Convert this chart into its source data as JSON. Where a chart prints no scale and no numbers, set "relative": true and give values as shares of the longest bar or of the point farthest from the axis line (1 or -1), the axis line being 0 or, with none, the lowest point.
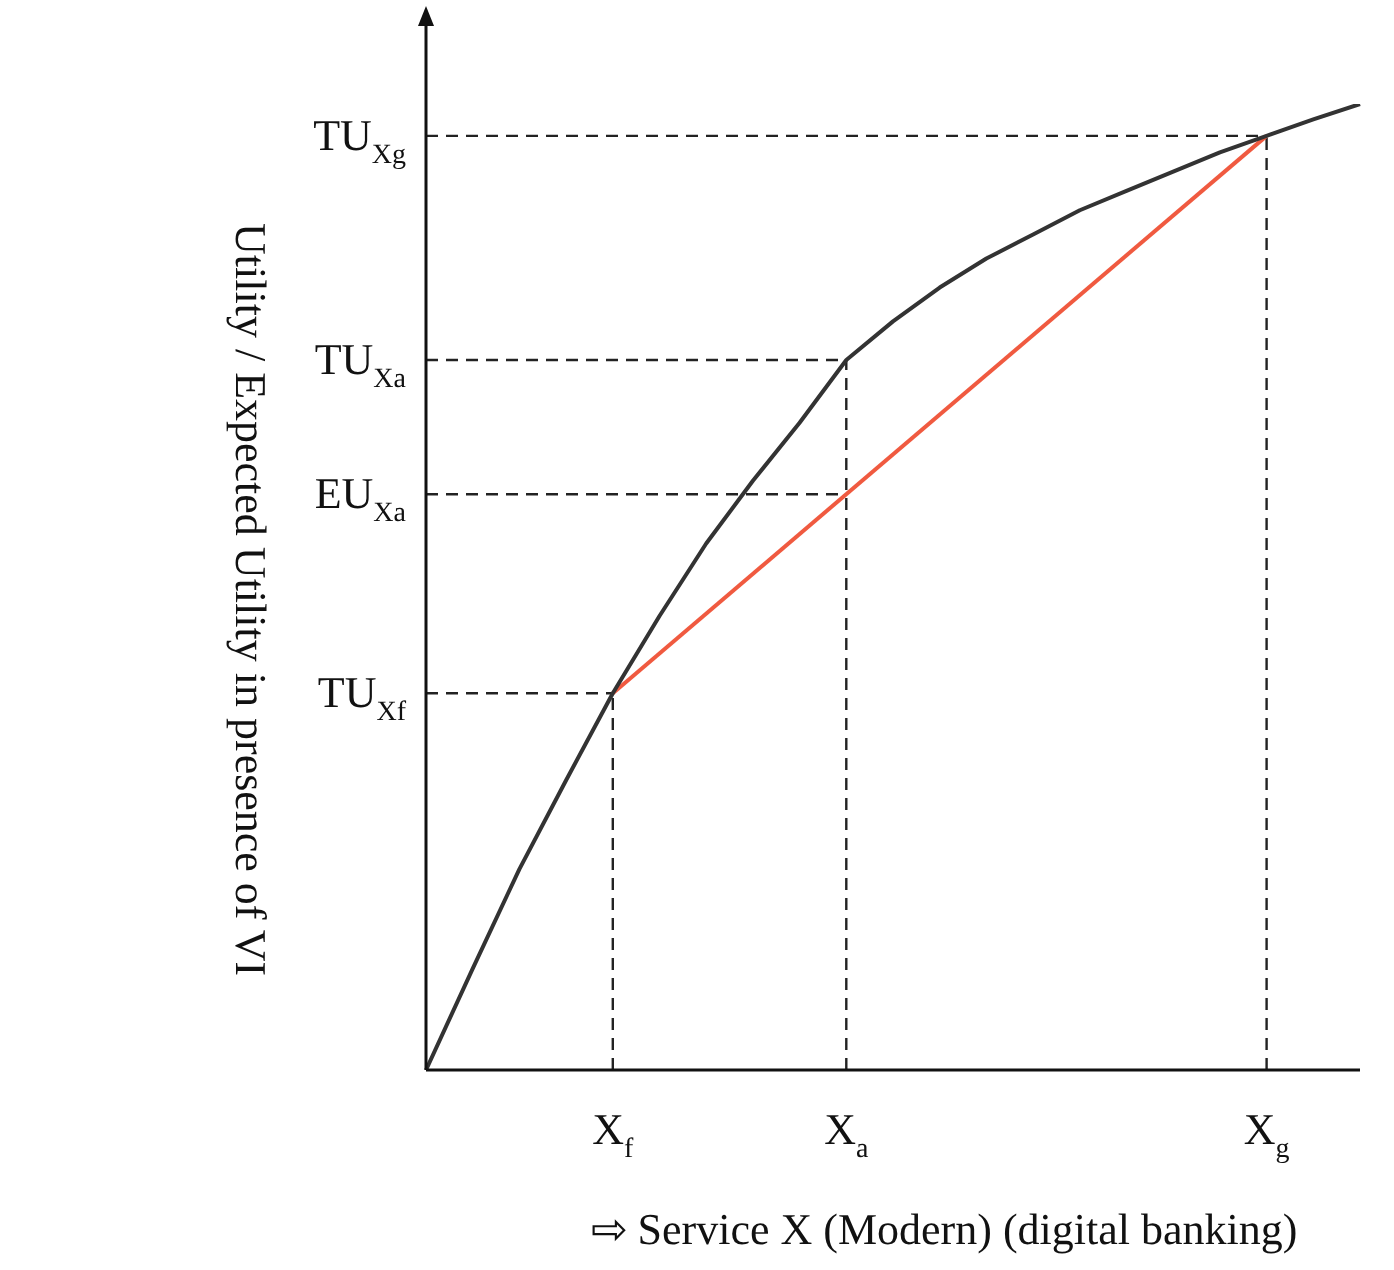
{
  "chart_data": {
    "type": "line",
    "relative": true,
    "categories": [
      null,
      null,
      null,
      null,
      "X$_{f}$",
      null,
      null,
      null,
      null,
      "X$_{a}$",
      null,
      null,
      null,
      null,
      null,
      null,
      null,
      null,
      "X$_{g}$",
      null,
      null
    ],
    "xlabel": "⇨ Service X (Modern) (digital banking)",
    "ylabel": "Utility / Expected Utility in presence of VI",
    "legend": false,
    "grid": false,
    "marker": "none",
    "line_style": "solid",
    "series": [
      {
        "color": "#333333",
        "values": [
          0,
          0.105,
          0.208,
          0.3,
          0.39,
          0.47,
          0.545,
          0.61,
          0.67,
          0.735,
          0.775,
          0.81,
          0.84,
          0.865,
          0.89,
          0.91,
          0.93,
          0.95,
          0.967,
          0.984,
          1
        ]
      },
      {
        "color": "#f05a40",
        "values": [
          null,
          null,
          null,
          null,
          0.39,
          null,
          null,
          null,
          null,
          null,
          null,
          null,
          null,
          null,
          null,
          null,
          null,
          null,
          0.967,
          null,
          null
        ]
      }
    ],
    "ref_lines": [
      {
        "axis": "y",
        "value": 0.967,
        "label": "TU$_{Xg}$",
        "line_style": "dashed"
      },
      {
        "axis": "y",
        "value": 0.735,
        "label": "TU$_{Xa}$",
        "line_style": "dashed"
      },
      {
        "axis": "y",
        "value": 0.596,
        "label": "EU$_{Xa}$",
        "line_style": "dashed"
      },
      {
        "axis": "y",
        "value": 0.39,
        "label": "TU$_{Xf}$",
        "line_style": "dashed"
      },
      {
        "axis": "x",
        "value": "X$_{f}$",
        "line_style": "dashed"
      },
      {
        "axis": "x",
        "value": "X$_{a}$",
        "line_style": "dashed"
      },
      {
        "axis": "x",
        "value": "X$_{g}$",
        "line_style": "dashed"
      }
    ]
  }
}
